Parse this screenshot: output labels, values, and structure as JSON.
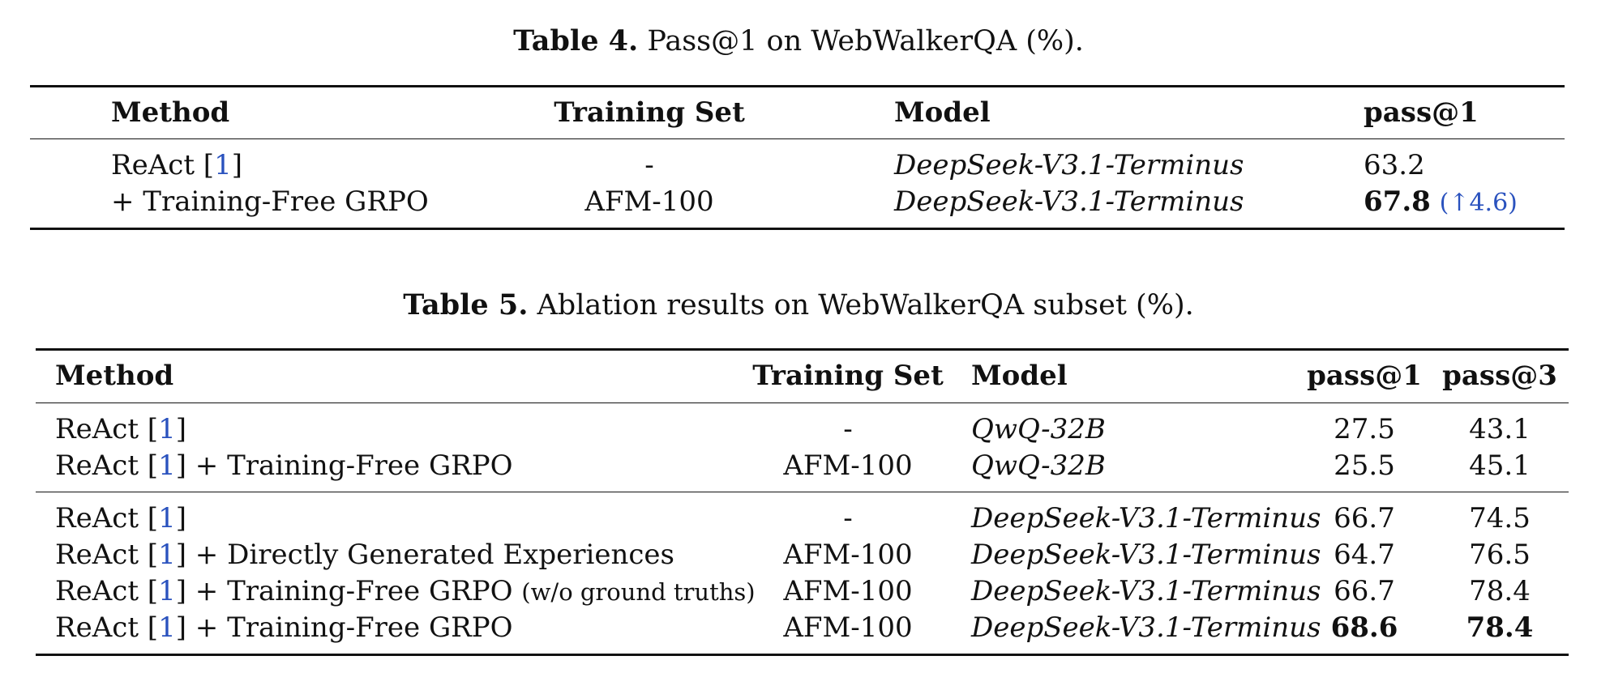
{
  "table4": {
    "caption_label": "Table 4.",
    "caption_text": "Pass@1 on WebWalkerQA (%).",
    "headers": [
      "Method",
      "Training Set",
      "Model",
      "pass@1"
    ],
    "rows": [
      {
        "method": "ReAct [",
        "cite": "1",
        "method_end": "]",
        "training_set": "-",
        "model": "DeepSeek-V3.1-Terminus",
        "pass1": "63.2"
      },
      {
        "method": "+ Training-Free GRPO",
        "training_set": "AFM-100",
        "model": "DeepSeek-V3.1-Terminus",
        "pass1": "67.8",
        "delta": "(↑4.6)"
      }
    ]
  },
  "table5": {
    "caption_label": "Table 5.",
    "caption_text": "Ablation results on WebWalkerQA subset (%).",
    "headers": [
      "Method",
      "Training Set",
      "Model",
      "pass@1",
      "pass@3"
    ],
    "method_prefix": "ReAct [",
    "cite": "1",
    "method_close": "]",
    "rows": [
      {
        "suffix": "",
        "training_set": "-",
        "model": "QwQ-32B",
        "pass1": "27.5",
        "pass3": "43.1"
      },
      {
        "suffix": " + Training-Free GRPO",
        "training_set": "AFM-100",
        "model": "QwQ-32B",
        "pass1": "25.5",
        "pass3": "45.1"
      },
      {
        "suffix": "",
        "training_set": "-",
        "model": "DeepSeek-V3.1-Terminus",
        "pass1": "66.7",
        "pass3": "74.5"
      },
      {
        "suffix": " + Directly Generated Experiences",
        "training_set": "AFM-100",
        "model": "DeepSeek-V3.1-Terminus",
        "pass1": "64.7",
        "pass3": "76.5"
      },
      {
        "suffix": " + Training-Free GRPO ",
        "note": "(w/o ground truths)",
        "training_set": "AFM-100",
        "model": "DeepSeek-V3.1-Terminus",
        "pass1": "66.7",
        "pass3": "78.4"
      },
      {
        "suffix": " + Training-Free GRPO",
        "training_set": "AFM-100",
        "model": "DeepSeek-V3.1-Terminus",
        "pass1": "68.6",
        "pass3": "78.4"
      }
    ]
  }
}
